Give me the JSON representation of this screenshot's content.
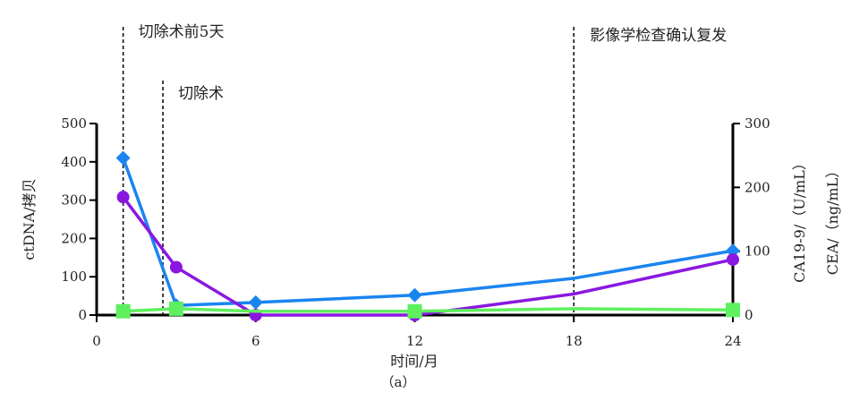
{
  "chart_data": {
    "type": "line",
    "xlabel": "时间/月",
    "caption": "（a）",
    "x_ticks": [
      0,
      6,
      12,
      18,
      24
    ],
    "xlim": [
      0,
      24
    ],
    "left_axis": {
      "label": "ctDNA/拷贝",
      "ylim": [
        0,
        500
      ],
      "ticks": [
        0,
        100,
        200,
        300,
        400,
        500
      ]
    },
    "right_axis": {
      "label_1": "CA19-9/（U/mL）",
      "label_2": "CEA/（ng/mL）",
      "ylim": [
        0,
        300
      ],
      "ticks": [
        0,
        100,
        200,
        300
      ]
    },
    "events": [
      {
        "x": 1,
        "label": "切除术前5天"
      },
      {
        "x": 2.5,
        "label": "切除术"
      },
      {
        "x": 18,
        "label": "影像学检查确认复发"
      }
    ],
    "series": [
      {
        "axis": "left",
        "color": "#1a85f0",
        "marker": "diamond",
        "x": [
          1,
          3,
          6,
          12,
          18,
          24
        ],
        "values": [
          410,
          25,
          33,
          52,
          96,
          168
        ],
        "marked": [
          true,
          true,
          true,
          true,
          false,
          true
        ]
      },
      {
        "axis": "left",
        "color": "#8a17e0",
        "marker": "circle",
        "x": [
          1,
          3,
          6,
          12,
          18,
          24
        ],
        "values": [
          308,
          125,
          0,
          0,
          55,
          145
        ],
        "marked": [
          true,
          true,
          true,
          true,
          false,
          true
        ]
      },
      {
        "axis": "right",
        "color": "#5ef05e",
        "marker": "square",
        "x": [
          1,
          3,
          6,
          12,
          18,
          24
        ],
        "values": [
          6,
          10,
          6,
          6,
          10,
          8
        ],
        "marked": [
          true,
          true,
          false,
          true,
          false,
          true
        ]
      }
    ]
  }
}
